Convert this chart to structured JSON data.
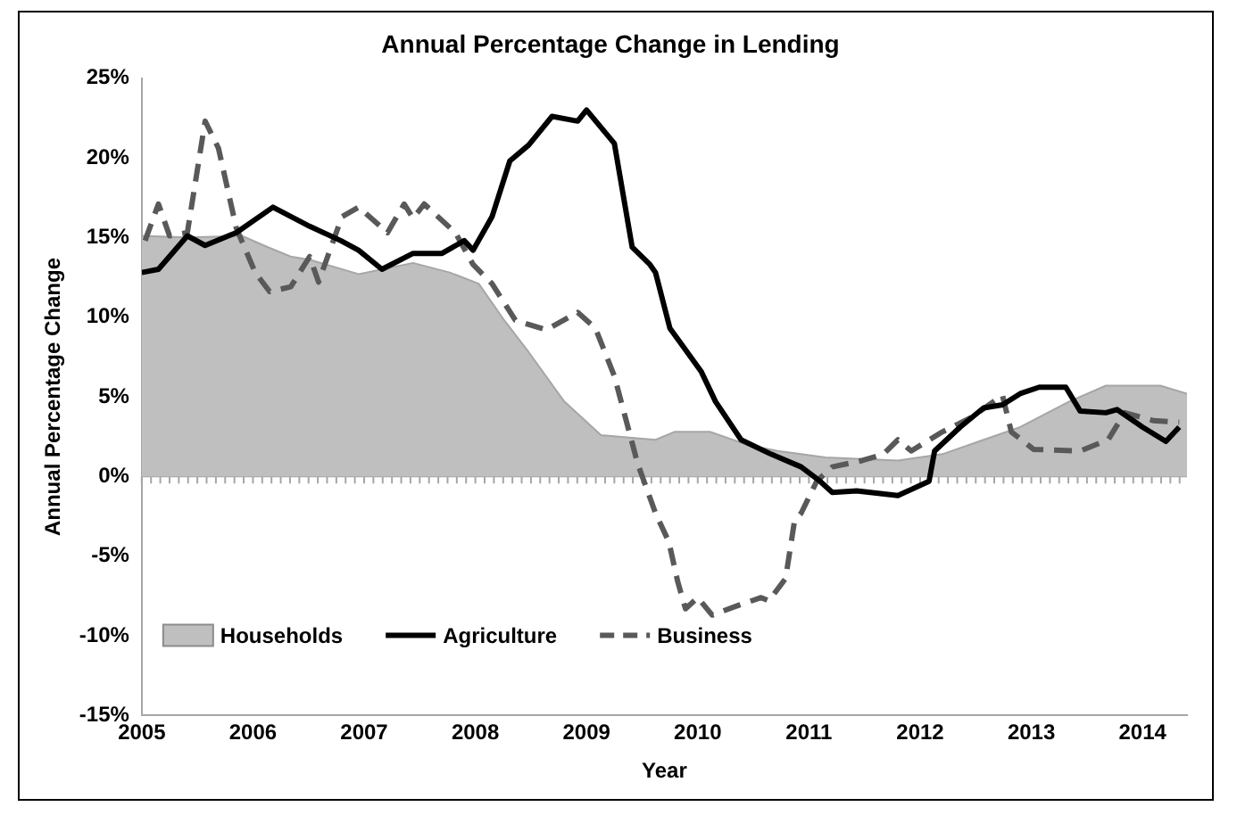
{
  "chart_data": {
    "type": "line",
    "title": "Annual Percentage Change in Lending",
    "xlabel": "Year",
    "ylabel": "Annual Percentage Change",
    "xlim": [
      2005,
      2014.4
    ],
    "xticks": [
      2005,
      2006,
      2007,
      2008,
      2009,
      2010,
      2011,
      2012,
      2013,
      2014
    ],
    "ylim": [
      -15,
      25
    ],
    "yticks": [
      {
        "value": -15,
        "label": "-15%"
      },
      {
        "value": -10,
        "label": "-10%"
      },
      {
        "value": -5,
        "label": "-5%"
      },
      {
        "value": 0,
        "label": "0%"
      },
      {
        "value": 5,
        "label": "5%"
      },
      {
        "value": 10,
        "label": "10%"
      },
      {
        "value": 15,
        "label": "15%"
      },
      {
        "value": 20,
        "label": "20%"
      },
      {
        "value": 25,
        "label": "25%"
      }
    ],
    "grid": false,
    "legend": "bottom left",
    "marker": "none",
    "ref_lines": [
      {
        "axis": "y",
        "value": 0,
        "color": "#a6a6a6"
      }
    ],
    "series": [
      {
        "name": "Households",
        "type": "area",
        "color": "#bfbfbf",
        "x": [
          2005,
          2005.41,
          2005.9,
          2006.13,
          2006.34,
          2006.51,
          2006.95,
          2007.44,
          2007.77,
          2008.03,
          2008.26,
          2008.48,
          2008.8,
          2009.13,
          2009.62,
          2009.79,
          2010.11,
          2010.44,
          2010.72,
          2011.15,
          2011.8,
          2012.2,
          2012.57,
          2012.9,
          2013.34,
          2013.67,
          2014.16,
          2014.4
        ],
        "values": [
          15.1,
          15.0,
          15.1,
          14.4,
          13.8,
          13.6,
          12.7,
          13.4,
          12.8,
          12.1,
          9.8,
          7.8,
          4.7,
          2.6,
          2.3,
          2.8,
          2.8,
          2.0,
          1.6,
          1.2,
          1.0,
          1.4,
          2.3,
          3.1,
          4.7,
          5.7,
          5.7,
          5.2
        ]
      },
      {
        "name": "Agriculture",
        "type": "line",
        "color": "#000000",
        "line_style": "solid",
        "x": [
          2005,
          2005.15,
          2005.41,
          2005.57,
          2005.85,
          2006.18,
          2006.51,
          2006.79,
          2006.95,
          2007.16,
          2007.44,
          2007.7,
          2007.9,
          2007.98,
          2008.15,
          2008.31,
          2008.48,
          2008.69,
          2008.92,
          2009.0,
          2009.25,
          2009.41,
          2009.57,
          2009.62,
          2009.75,
          2010.03,
          2010.16,
          2010.39,
          2010.66,
          2010.93,
          2011.1,
          2011.21,
          2011.43,
          2011.8,
          2012.08,
          2012.13,
          2012.36,
          2012.57,
          2012.74,
          2012.9,
          2013.07,
          2013.31,
          2013.44,
          2013.67,
          2013.77,
          2014.0,
          2014.21,
          2014.33
        ],
        "values": [
          12.8,
          13.0,
          15.1,
          14.5,
          15.3,
          16.9,
          15.7,
          14.8,
          14.2,
          13.0,
          14.0,
          14.0,
          14.8,
          14.2,
          16.3,
          19.8,
          20.8,
          22.6,
          22.3,
          23.0,
          20.9,
          14.4,
          13.3,
          12.8,
          9.3,
          6.6,
          4.7,
          2.3,
          1.4,
          0.6,
          -0.3,
          -1.0,
          -0.9,
          -1.2,
          -0.3,
          1.6,
          3.1,
          4.3,
          4.5,
          5.2,
          5.6,
          5.6,
          4.1,
          4.0,
          4.2,
          3.1,
          2.2,
          3.1
        ]
      },
      {
        "name": "Business",
        "type": "line",
        "color": "#595959",
        "line_style": "dashed",
        "x": [
          2005.03,
          2005.15,
          2005.25,
          2005.41,
          2005.57,
          2005.69,
          2005.85,
          2006.02,
          2006.15,
          2006.34,
          2006.51,
          2006.59,
          2006.8,
          2006.95,
          2007.21,
          2007.36,
          2007.44,
          2007.54,
          2007.82,
          2007.98,
          2008.15,
          2008.36,
          2008.64,
          2008.92,
          2009.08,
          2009.25,
          2009.46,
          2009.62,
          2009.74,
          2009.82,
          2009.89,
          2010.0,
          2010.13,
          2010.36,
          2010.57,
          2010.64,
          2010.79,
          2010.87,
          2010.93,
          2011.07,
          2011.21,
          2011.48,
          2011.67,
          2011.8,
          2011.92,
          2012.2,
          2012.46,
          2012.74,
          2012.82,
          2013.02,
          2013.44,
          2013.69,
          2013.84,
          2014.1,
          2014.33
        ],
        "values": [
          14.8,
          17.1,
          15.1,
          15.3,
          22.3,
          20.6,
          15.6,
          12.8,
          11.6,
          11.9,
          13.8,
          12.2,
          16.3,
          16.9,
          15.3,
          17.1,
          16.2,
          17.1,
          15.3,
          13.3,
          12.1,
          9.8,
          9.2,
          10.3,
          9.3,
          6.3,
          0.8,
          -2.3,
          -4.1,
          -6.6,
          -8.3,
          -7.6,
          -8.7,
          -8.1,
          -7.6,
          -7.8,
          -6.4,
          -2.8,
          -2.3,
          -0.3,
          0.6,
          1.0,
          1.4,
          2.3,
          1.6,
          2.8,
          3.7,
          5.1,
          2.8,
          1.7,
          1.6,
          2.3,
          4.0,
          3.5,
          3.4
        ]
      }
    ]
  }
}
